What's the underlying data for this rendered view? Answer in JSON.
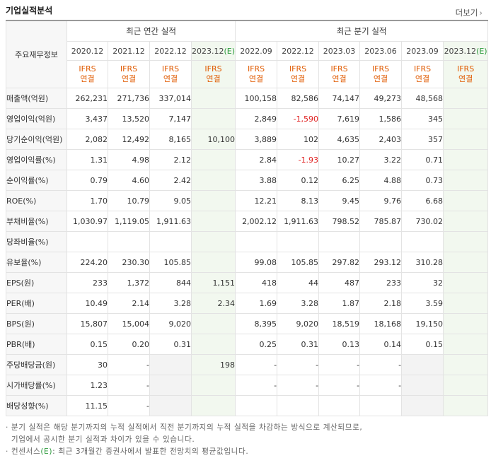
{
  "title": "기업실적분석",
  "more_label": "더보기",
  "header": {
    "row_label": "주요재무정보",
    "annual_group": "최근 연간 실적",
    "quarterly_group": "최근 분기 실적",
    "annual_periods": [
      "2020.12",
      "2021.12",
      "2022.12",
      "2023.12"
    ],
    "annual_est_mark": "(E)",
    "quarterly_periods": [
      "2022.09",
      "2022.12",
      "2023.03",
      "2023.06",
      "2023.09",
      "2023.12"
    ],
    "quarterly_est_mark": "(E)",
    "basis_line1": "IFRS",
    "basis_line2": "연결"
  },
  "rows": [
    {
      "label": "매출액(억원)",
      "annual": [
        "262,231",
        "271,736",
        "337,014",
        ""
      ],
      "quarterly": [
        "100,158",
        "82,586",
        "74,147",
        "49,273",
        "48,568",
        ""
      ]
    },
    {
      "label": "영업이익(억원)",
      "annual": [
        "3,437",
        "13,520",
        "7,147",
        ""
      ],
      "quarterly": [
        "2,849",
        "-1,590",
        "7,619",
        "1,586",
        "345",
        ""
      ]
    },
    {
      "label": "당기순이익(억원)",
      "annual": [
        "2,082",
        "12,492",
        "8,165",
        "10,100"
      ],
      "quarterly": [
        "3,889",
        "102",
        "4,635",
        "2,403",
        "357",
        ""
      ]
    },
    {
      "label": "영업이익률(%)",
      "annual": [
        "1.31",
        "4.98",
        "2.12",
        ""
      ],
      "quarterly": [
        "2.84",
        "-1.93",
        "10.27",
        "3.22",
        "0.71",
        ""
      ]
    },
    {
      "label": "순이익률(%)",
      "annual": [
        "0.79",
        "4.60",
        "2.42",
        ""
      ],
      "quarterly": [
        "3.88",
        "0.12",
        "6.25",
        "4.88",
        "0.73",
        ""
      ]
    },
    {
      "label": "ROE(%)",
      "annual": [
        "1.70",
        "10.79",
        "9.05",
        ""
      ],
      "quarterly": [
        "12.21",
        "8.13",
        "9.45",
        "9.76",
        "6.68",
        ""
      ]
    },
    {
      "label": "부채비율(%)",
      "annual": [
        "1,030.97",
        "1,119.05",
        "1,911.63",
        ""
      ],
      "quarterly": [
        "2,002.12",
        "1,911.63",
        "798.52",
        "785.87",
        "730.02",
        ""
      ]
    },
    {
      "label": "당좌비율(%)",
      "annual": [
        "",
        "",
        "",
        ""
      ],
      "quarterly": [
        "",
        "",
        "",
        "",
        "",
        ""
      ]
    },
    {
      "label": "유보율(%)",
      "annual": [
        "224.20",
        "230.30",
        "105.85",
        ""
      ],
      "quarterly": [
        "99.08",
        "105.85",
        "297.82",
        "293.12",
        "310.28",
        ""
      ]
    },
    {
      "label": "EPS(원)",
      "annual": [
        "233",
        "1,372",
        "844",
        "1,151"
      ],
      "quarterly": [
        "418",
        "44",
        "487",
        "233",
        "32",
        ""
      ]
    },
    {
      "label": "PER(배)",
      "annual": [
        "10.49",
        "2.14",
        "3.28",
        "2.34"
      ],
      "quarterly": [
        "1.69",
        "3.28",
        "1.87",
        "2.18",
        "3.59",
        ""
      ]
    },
    {
      "label": "BPS(원)",
      "annual": [
        "15,807",
        "15,004",
        "9,020",
        ""
      ],
      "quarterly": [
        "8,395",
        "9,020",
        "18,519",
        "18,168",
        "19,150",
        ""
      ]
    },
    {
      "label": "PBR(배)",
      "annual": [
        "0.15",
        "0.20",
        "0.31",
        ""
      ],
      "quarterly": [
        "0.25",
        "0.31",
        "0.13",
        "0.14",
        "0.15",
        ""
      ]
    },
    {
      "label": "주당배당금(원)",
      "annual": [
        "30",
        "-",
        "",
        "198"
      ],
      "quarterly": [
        "-",
        "-",
        "-",
        "-",
        "",
        ""
      ]
    },
    {
      "label": "시가배당률(%)",
      "annual": [
        "1.23",
        "-",
        "",
        ""
      ],
      "quarterly": [
        "-",
        "-",
        "-",
        "-",
        "",
        ""
      ]
    },
    {
      "label": "배당성향(%)",
      "annual": [
        "11.15",
        "-",
        "",
        ""
      ],
      "quarterly": [
        "",
        "",
        "",
        "",
        "",
        ""
      ]
    }
  ],
  "notes": {
    "line1": "· 분기 실적은 해당 분기까지의 누적 실적에서 직전 분기까지의 누적 실적을 차감하는 방식으로 계산되므로,",
    "line2": "  기업에서 공시한 분기 실적과 차이가 있을 수 있습니다.",
    "line3_prefix": "· 컨센서스",
    "line3_mark": "(E)",
    "line3_suffix": ": 최근 3개월간 증권사에서 발표한 전망치의 평균값입니다."
  },
  "colors": {
    "basis": "#e05a00",
    "negative": "#e02020",
    "estimate_mark": "#2b9a3b",
    "estimate_bg": "#f2f8ef"
  }
}
